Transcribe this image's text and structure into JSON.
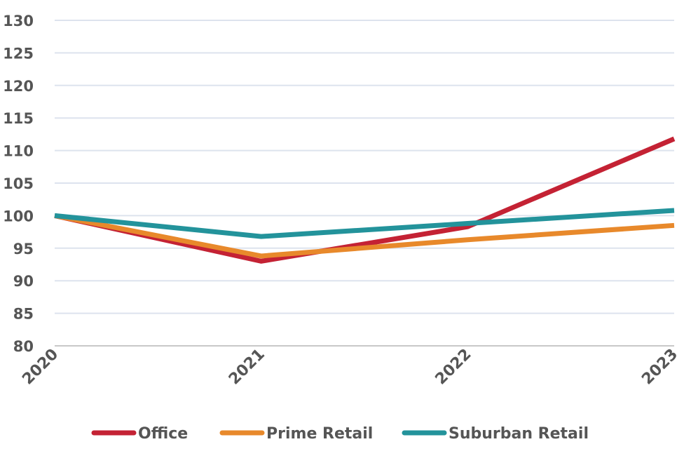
{
  "chart_data": {
    "type": "line",
    "title": "",
    "xlabel": "",
    "ylabel": "",
    "categories": [
      "2020",
      "2021",
      "2022",
      "2023"
    ],
    "ylim": [
      80,
      130
    ],
    "yticks": [
      80,
      85,
      90,
      95,
      100,
      105,
      110,
      115,
      120,
      125,
      130
    ],
    "grid": true,
    "legend_position": "bottom",
    "series": [
      {
        "name": "Office",
        "color": "#C42234",
        "values": [
          100,
          93,
          98.3,
          111.8
        ]
      },
      {
        "name": "Prime Retail",
        "color": "#E8892B",
        "values": [
          100,
          93.8,
          96.3,
          98.5
        ]
      },
      {
        "name": "Suburban Retail",
        "color": "#23939B",
        "values": [
          100,
          96.8,
          98.8,
          100.8
        ]
      }
    ]
  }
}
